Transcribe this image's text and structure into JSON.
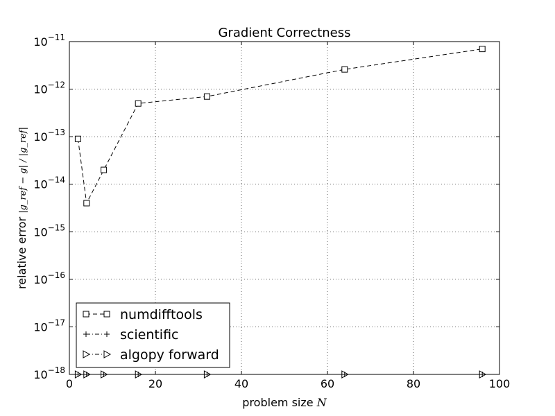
{
  "chart_data": {
    "type": "line",
    "title": "Gradient Correctness",
    "xlabel": "problem size",
    "xlabel_symbol": "N",
    "ylabel": "relative error",
    "ylabel_formula": "|g_ref − g| / |g_ref|",
    "xscale": "linear",
    "yscale": "log",
    "xlim": [
      0,
      100
    ],
    "ylim_exp": [
      -18,
      -11
    ],
    "x_ticks": [
      "0",
      "20",
      "40",
      "60",
      "80",
      "100"
    ],
    "y_ticks": [
      {
        "base": "10",
        "exp": "−18"
      },
      {
        "base": "10",
        "exp": "−17"
      },
      {
        "base": "10",
        "exp": "−16"
      },
      {
        "base": "10",
        "exp": "−15"
      },
      {
        "base": "10",
        "exp": "−14"
      },
      {
        "base": "10",
        "exp": "−13"
      },
      {
        "base": "10",
        "exp": "−12"
      },
      {
        "base": "10",
        "exp": "−11"
      }
    ],
    "grid": true,
    "legend_position": "lower-left",
    "series": [
      {
        "name": "numdifftools",
        "marker": "square",
        "style": "dashed",
        "x": [
          2,
          4,
          8,
          16,
          32,
          64,
          96
        ],
        "y": [
          9e-14,
          4e-15,
          2e-14,
          5e-13,
          7e-13,
          2.6e-12,
          7e-12
        ]
      },
      {
        "name": "scientific",
        "marker": "plus",
        "style": "dashdot",
        "x": [
          2,
          4,
          8,
          16,
          32,
          64,
          96
        ],
        "y": [
          1e-18,
          1e-18,
          1e-18,
          1e-18,
          1e-18,
          1e-18,
          1e-18
        ]
      },
      {
        "name": "algopy forward",
        "marker": "triangle-right",
        "style": "dashdot",
        "x": [
          2,
          4,
          8,
          16,
          32,
          64,
          96
        ],
        "y": [
          1e-18,
          1e-18,
          1e-18,
          1e-18,
          1e-18,
          1e-18,
          1e-18
        ]
      }
    ]
  }
}
